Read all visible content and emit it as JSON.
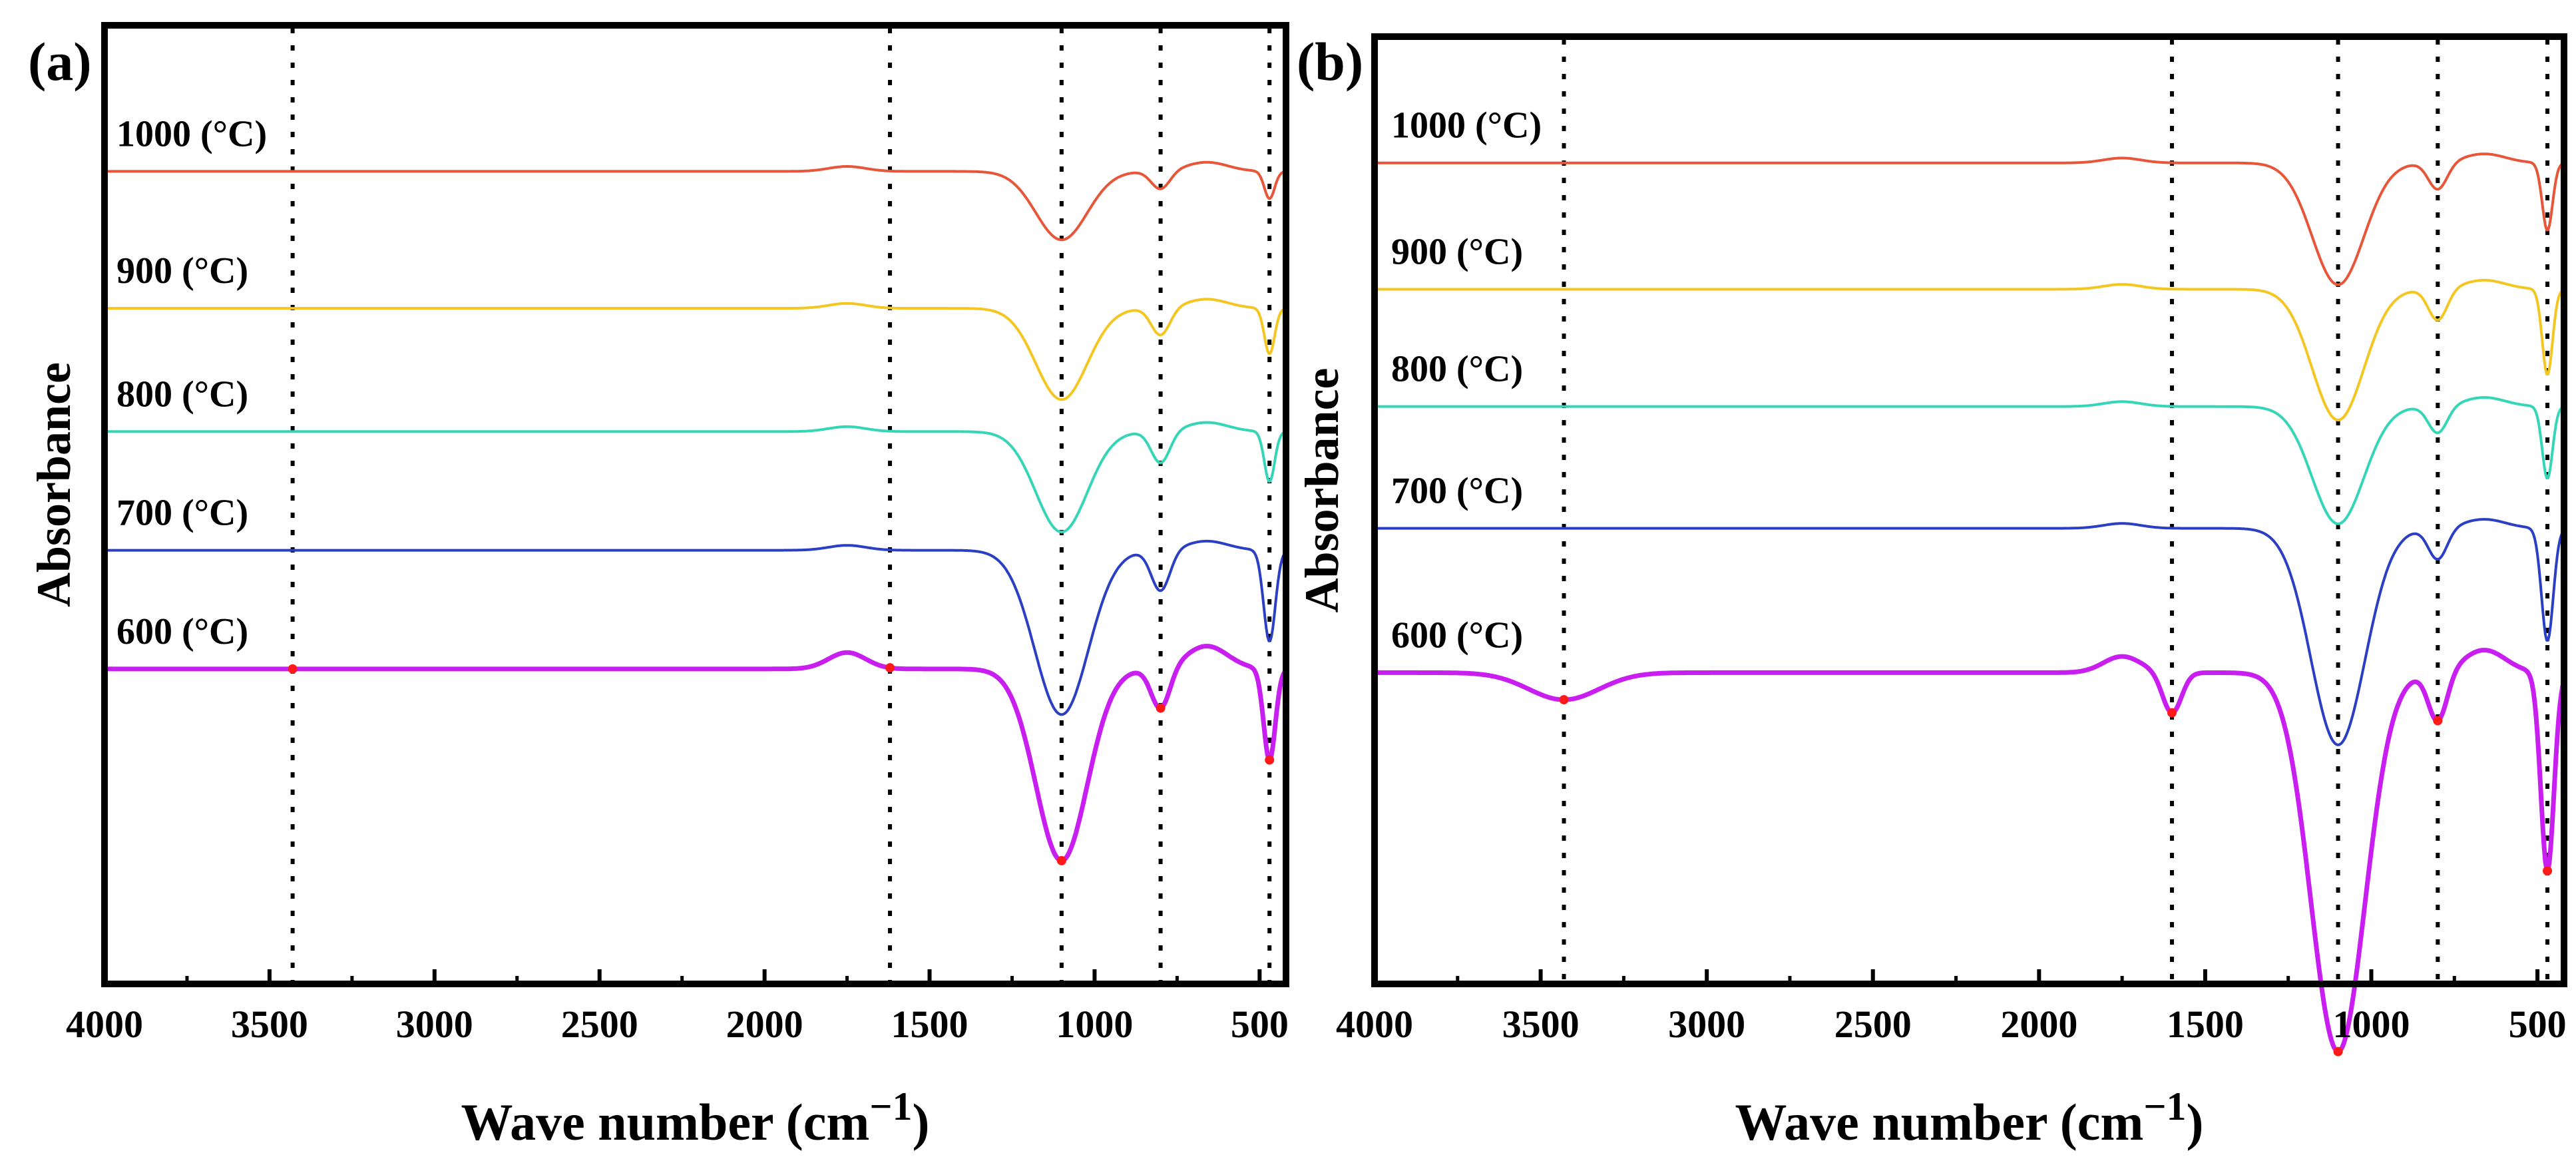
{
  "chart_data": [
    {
      "type": "line",
      "panel_label": "(a)",
      "xlabel": "Wave number (cm",
      "xlabel_sup": "−1",
      "xlabel_close": ")",
      "ylabel": "Absorbance",
      "xlim": [
        4000,
        420
      ],
      "x_ticks": [
        4000,
        3500,
        3000,
        2500,
        2000,
        1500,
        1000,
        500
      ],
      "x_tick_labels": [
        "4000",
        "3500",
        "3000",
        "2500",
        "2000",
        "1500",
        "1000",
        "500"
      ],
      "reference_lines": [
        3430,
        1620,
        1100,
        800,
        470
      ],
      "y_grid": false,
      "series": [
        {
          "name": "1000 (°C)",
          "color": "#E8563A",
          "baseline": 8.9,
          "minor": true,
          "features": [
            {
              "center": 1100,
              "depth": 0.75,
              "width": 110
            },
            {
              "center": 800,
              "depth": 0.2,
              "width": 40
            },
            {
              "center": 470,
              "depth": 0.3,
              "width": 22
            }
          ]
        },
        {
          "name": "900 (°C)",
          "color": "#F4C622",
          "baseline": 7.4,
          "minor": true,
          "features": [
            {
              "center": 1100,
              "depth": 1.0,
              "width": 110
            },
            {
              "center": 800,
              "depth": 0.3,
              "width": 40
            },
            {
              "center": 470,
              "depth": 0.5,
              "width": 22
            }
          ]
        },
        {
          "name": "800 (°C)",
          "color": "#35D6B8",
          "baseline": 6.05,
          "minor": true,
          "features": [
            {
              "center": 1100,
              "depth": 1.1,
              "width": 110
            },
            {
              "center": 800,
              "depth": 0.35,
              "width": 40
            },
            {
              "center": 470,
              "depth": 0.55,
              "width": 22
            }
          ]
        },
        {
          "name": "700 (°C)",
          "color": "#2B3FC4",
          "baseline": 4.75,
          "minor": true,
          "features": [
            {
              "center": 1100,
              "depth": 1.8,
              "width": 115
            },
            {
              "center": 800,
              "depth": 0.45,
              "width": 40
            },
            {
              "center": 470,
              "depth": 1.0,
              "width": 25
            }
          ]
        },
        {
          "name": "600 (°C)",
          "color": "#C81EF0",
          "baseline": 3.45,
          "minor": false,
          "features": [
            {
              "center": 1100,
              "depth": 2.1,
              "width": 110
            },
            {
              "center": 800,
              "depth": 0.45,
              "width": 40
            },
            {
              "center": 470,
              "depth": 1.0,
              "width": 25
            }
          ]
        }
      ]
    },
    {
      "type": "line",
      "panel_label": "(b)",
      "xlabel": "Wave number (cm",
      "xlabel_sup": "−1",
      "xlabel_close": ")",
      "ylabel": "Absorbance",
      "xlim": [
        4000,
        420
      ],
      "x_ticks": [
        4000,
        3500,
        3000,
        2500,
        2000,
        1500,
        1000,
        500
      ],
      "x_tick_labels": [
        "4000",
        "3500",
        "3000",
        "2500",
        "2000",
        "1500",
        "1000",
        "500"
      ],
      "reference_lines": [
        3430,
        1600,
        1100,
        800,
        470
      ],
      "y_grid": false,
      "series": [
        {
          "name": "1000 (°C)",
          "color": "#E8563A",
          "baseline": 9.1,
          "minor": true,
          "features": [
            {
              "center": 1100,
              "depth": 1.35,
              "width": 110
            },
            {
              "center": 800,
              "depth": 0.3,
              "width": 40
            },
            {
              "center": 470,
              "depth": 0.75,
              "width": 22
            }
          ]
        },
        {
          "name": "900 (°C)",
          "color": "#F4C622",
          "baseline": 7.7,
          "minor": true,
          "features": [
            {
              "center": 1100,
              "depth": 1.45,
              "width": 110
            },
            {
              "center": 800,
              "depth": 0.35,
              "width": 40
            },
            {
              "center": 470,
              "depth": 0.95,
              "width": 22
            }
          ]
        },
        {
          "name": "800 (°C)",
          "color": "#35D6B8",
          "baseline": 6.4,
          "minor": true,
          "features": [
            {
              "center": 1100,
              "depth": 1.3,
              "width": 110
            },
            {
              "center": 800,
              "depth": 0.3,
              "width": 40
            },
            {
              "center": 470,
              "depth": 0.8,
              "width": 22
            }
          ]
        },
        {
          "name": "700 (°C)",
          "color": "#2B3FC4",
          "baseline": 5.05,
          "minor": true,
          "features": [
            {
              "center": 1100,
              "depth": 2.4,
              "width": 115
            },
            {
              "center": 800,
              "depth": 0.35,
              "width": 40
            },
            {
              "center": 470,
              "depth": 1.25,
              "width": 25
            }
          ]
        },
        {
          "name": "600 (°C)",
          "color": "#C81EF0",
          "baseline": 3.45,
          "minor": false,
          "features": [
            {
              "center": 1100,
              "depth": 4.2,
              "width": 115
            },
            {
              "center": 1600,
              "depth": 0.45,
              "width": 40
            },
            {
              "center": 3430,
              "depth": 0.3,
              "width": 150
            },
            {
              "center": 800,
              "depth": 0.55,
              "width": 40
            },
            {
              "center": 470,
              "depth": 2.2,
              "width": 28
            }
          ]
        }
      ]
    }
  ]
}
